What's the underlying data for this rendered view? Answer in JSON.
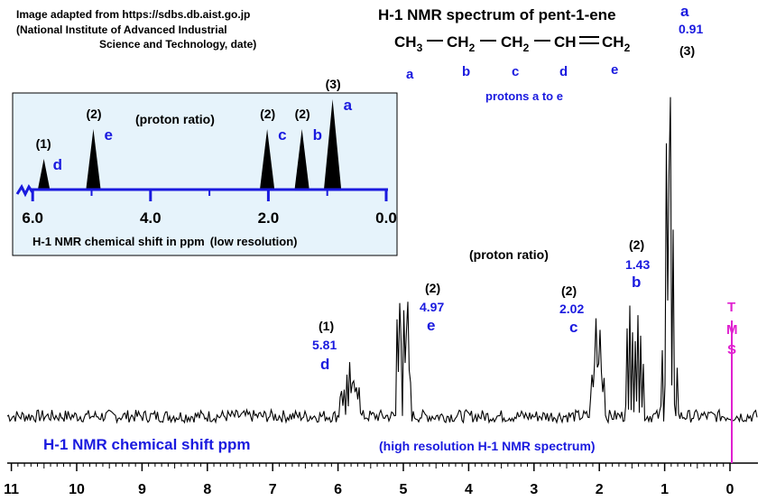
{
  "source_note": [
    "Image adapted from https://sdbs.db.aist.go.jp",
    "(National Institute of Advanced Industrial",
    "Science and Technology, date)"
  ],
  "title": "H-1 NMR spectrum of pent-1-ene",
  "molecule": {
    "groups": [
      "CH",
      "CH",
      "CH",
      "CH",
      "CH"
    ],
    "subscripts": [
      "3",
      "2",
      "2",
      "",
      "2"
    ],
    "labels": [
      "a",
      "b",
      "c",
      "d",
      "e"
    ],
    "caption": "protons a to e"
  },
  "colors": {
    "blue": "#1a1adf",
    "magenta": "#e020d0",
    "black": "#000000",
    "inset_bg": "#e6f3fb"
  },
  "chart_data": [
    {
      "type": "line",
      "title": "(high resolution H-1 NMR spectrum)",
      "xlabel": "H-1 NMR chemical shift  ppm",
      "xlim": [
        11,
        0
      ],
      "x_ticks": [
        "11",
        "10",
        "9",
        "8",
        "7",
        "6",
        "5",
        "4",
        "3",
        "2",
        "1",
        "0"
      ],
      "ratio_label": "(proton ratio)",
      "reference": {
        "label": [
          "T",
          "M",
          "S"
        ],
        "shift": 0
      },
      "peaks": [
        {
          "proton": "d",
          "ratio": "(1)",
          "shift_label": "5.81",
          "shift": 5.81
        },
        {
          "proton": "e",
          "ratio": "(2)",
          "shift_label": "4.97",
          "shift": 4.97
        },
        {
          "proton": "c",
          "ratio": "(2)",
          "shift_label": "2.02",
          "shift": 2.02
        },
        {
          "proton": "b",
          "ratio": "(2)",
          "shift_label": "1.43",
          "shift": 1.43
        },
        {
          "proton": "a",
          "ratio": "(3)",
          "shift_label": "0.91",
          "shift": 0.91
        }
      ]
    },
    {
      "type": "line",
      "title": "(proton ratio)",
      "xlabel": "H-1  NMR chemical shift in ppm",
      "xlabel_note": "(low resolution)",
      "xlim": [
        6.0,
        0.0
      ],
      "x_ticks": [
        "6.0",
        "4.0",
        "2.0",
        "0.0"
      ],
      "peaks": [
        {
          "proton": "d",
          "ratio": "(1)",
          "shift": 5.81,
          "relative_height": 1
        },
        {
          "proton": "e",
          "ratio": "(2)",
          "shift": 4.97,
          "relative_height": 2
        },
        {
          "proton": "c",
          "ratio": "(2)",
          "shift": 2.02,
          "relative_height": 2
        },
        {
          "proton": "b",
          "ratio": "(2)",
          "shift": 1.43,
          "relative_height": 2
        },
        {
          "proton": "a",
          "ratio": "(3)",
          "shift": 0.91,
          "relative_height": 3
        }
      ]
    }
  ]
}
